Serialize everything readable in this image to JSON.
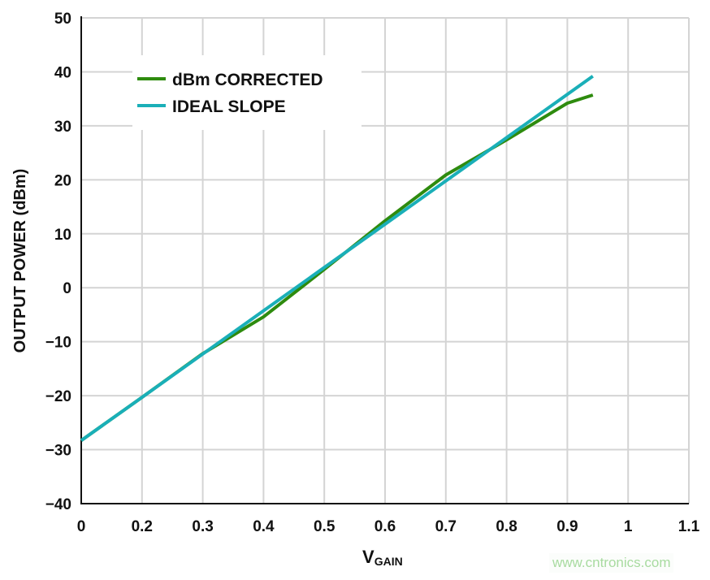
{
  "chart_data": {
    "type": "line",
    "xlabel": "V",
    "xlabel_subscript": "GAIN",
    "ylabel": "OUTPUT POWER (dBm)",
    "x_tick_labels": [
      "0",
      "0.2",
      "0.3",
      "0.4",
      "0.5",
      "0.6",
      "0.7",
      "0.8",
      "0.9",
      "1",
      "1.1"
    ],
    "y_tick_labels": [
      "50",
      "40",
      "30",
      "20",
      "10",
      "0",
      "−10",
      "−20",
      "−30",
      "−40"
    ],
    "ylim": [
      -40,
      50
    ],
    "grid": true,
    "legend_position": "top-left",
    "series": [
      {
        "name": "dBm CORRECTED",
        "color": "#2e8b0e",
        "x": [
          0,
          0.2,
          0.3,
          0.4,
          0.5,
          0.6,
          0.7,
          0.8,
          0.9,
          0.942
        ],
        "y": [
          -28.3,
          -20.3,
          -12.2,
          -5.4,
          3.4,
          12.4,
          20.9,
          27.4,
          34.2,
          35.7
        ]
      },
      {
        "name": "IDEAL SLOPE",
        "color": "#1aafb8",
        "x": [
          0,
          0.2,
          0.942
        ],
        "y": [
          -28.3,
          -20.3,
          39.2
        ]
      }
    ]
  },
  "watermark": "www.cntronics.com"
}
